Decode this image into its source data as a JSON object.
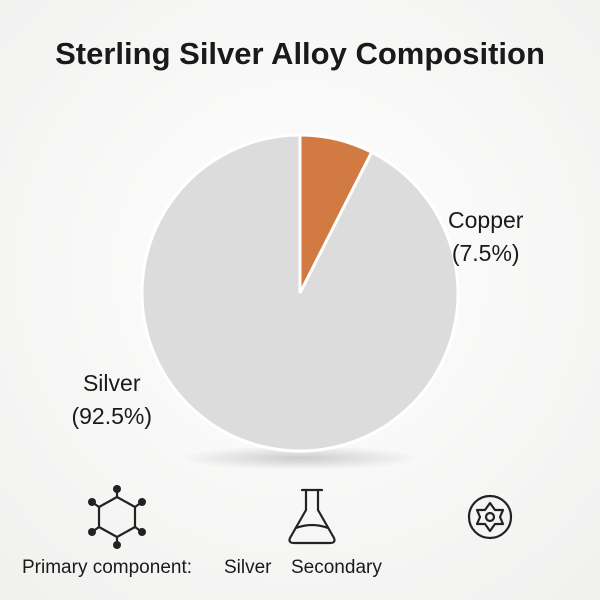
{
  "chart_data": {
    "type": "pie",
    "title": "Sterling Silver Alloy Composition",
    "categories": [
      "Silver",
      "Copper"
    ],
    "values": [
      92.5,
      7.5
    ],
    "value_labels": [
      "(92.5%)",
      "(7.5%)"
    ],
    "colors": [
      "#dcdcdc",
      "#d17a42"
    ]
  },
  "footer": {
    "items": [
      "Primary component:",
      "Silver",
      "Secondary"
    ]
  }
}
